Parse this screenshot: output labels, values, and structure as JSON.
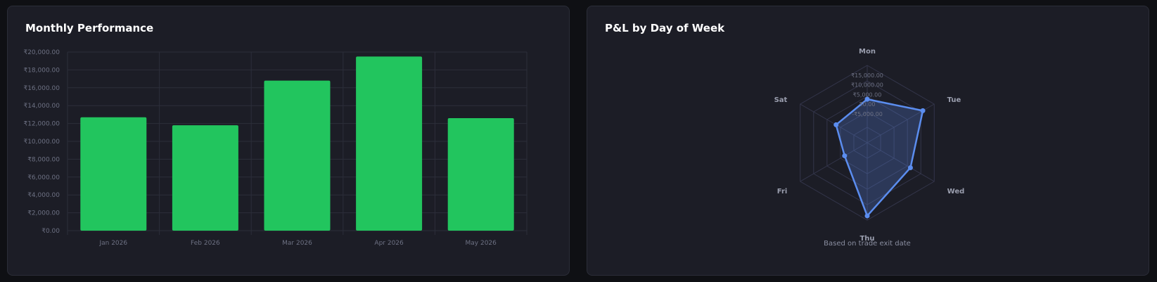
{
  "monthly": {
    "title": "Monthly Performance",
    "chart_data": {
      "type": "bar",
      "title": "Monthly Performance",
      "categories": [
        "Jan 2026",
        "Feb 2026",
        "Mar 2026",
        "Apr 2026",
        "May 2026"
      ],
      "values": [
        12700,
        11800,
        16800,
        19500,
        12600
      ],
      "ylim": [
        0,
        20000
      ],
      "yticks": [
        0,
        2000,
        4000,
        6000,
        8000,
        10000,
        12000,
        14000,
        16000,
        18000,
        20000
      ],
      "ytick_labels": [
        "₹0.00",
        "₹2,000.00",
        "₹4,000.00",
        "₹6,000.00",
        "₹8,000.00",
        "₹10,000.00",
        "₹12,000.00",
        "₹14,000.00",
        "₹16,000.00",
        "₹18,000.00",
        "₹20,000.00"
      ],
      "bar_color": "#22c55e",
      "grid": true
    }
  },
  "weekday": {
    "title": "P&L by Day of Week",
    "chart_data": {
      "type": "radar",
      "title": "P&L by Day of Week",
      "categories": [
        "Mon",
        "Tue",
        "Wed",
        "Thu",
        "Fri",
        "Sat"
      ],
      "values": [
        2500,
        13200,
        5800,
        17800,
        -6500,
        -1400
      ],
      "rlim": [
        -20000,
        20000
      ],
      "rticks": [
        -5000,
        0,
        5000,
        10000,
        15000
      ],
      "rtick_labels": [
        "-₹5,000.00",
        "₹0.00",
        "₹5,000.00",
        "₹10,000.00",
        "₹15,000.00"
      ],
      "line_color": "#5b8def",
      "grid": true
    },
    "footnote": "Based on trade exit date"
  }
}
